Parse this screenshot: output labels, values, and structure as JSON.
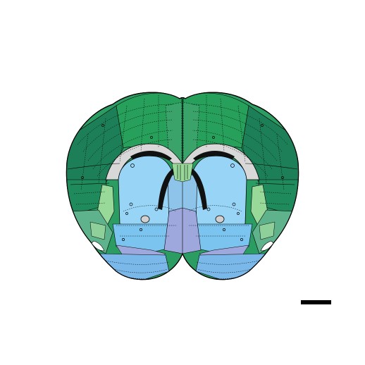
{
  "figure": {
    "kind": "coronal mouse brain atlas section (unlabeled)",
    "scale_bar_label": ""
  },
  "colors": {
    "background": "#ffffff",
    "outline": "#000000",
    "cortex_dorsal": "#26a05a",
    "cortex_lateral": "#1d7f58",
    "cortex_mid": "#2b9c62",
    "cortex_light": "#3aa36a",
    "olfactory_light": "#98d99a",
    "olfactory_mid": "#7bc8a0",
    "piriform": "#5fb38c",
    "hippocampal_tip": "#8fcf9a",
    "striatum": "#98d4f5",
    "striatum_ventral": "#7cc4f0",
    "pallidum_septal": "#8ec4ea",
    "hypothalamus": "#9ea8dc",
    "olfactory_tubercle": "#7ab8ea",
    "ventricle": "#d8d8d8",
    "corpus_callosum": "#cfcfcf",
    "fiber_dark": "#111111",
    "scale_bar": "#000000"
  },
  "icons": [
    "brain-section-diagram",
    "scale-bar"
  ]
}
